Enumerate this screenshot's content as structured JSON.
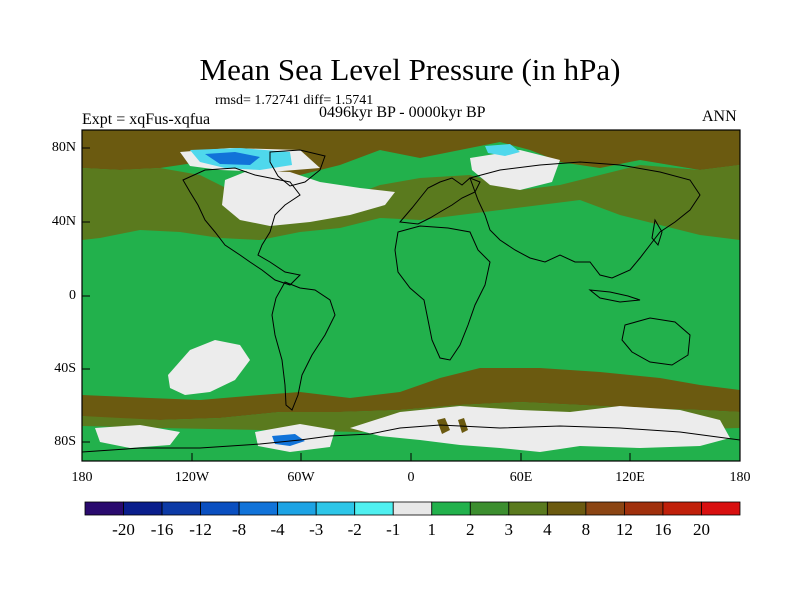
{
  "title": "Mean Sea Level Pressure (in hPa)",
  "stats_text": "rmsd= 1.72741 diff= 1.5741",
  "experiment_label": "Expt = xqFus-xqfua",
  "period_label": "0496kyr BP - 0000kyr BP",
  "season_label": "ANN",
  "y_ticks": [
    "80N",
    "40N",
    "0",
    "40S",
    "80S"
  ],
  "x_ticks": [
    "180",
    "120W",
    "60W",
    "0",
    "60E",
    "120E",
    "180"
  ],
  "colorbar": {
    "colors": [
      "#2a0a6e",
      "#0a1e8c",
      "#0c3aa6",
      "#0a4fc0",
      "#1173d9",
      "#1da3e4",
      "#2dc6e8",
      "#4ff0f0",
      "#e8e8e8",
      "#22b14c",
      "#3c8e2f",
      "#5a7a1e",
      "#6b5a10",
      "#8b4513",
      "#a0300c",
      "#c0200a",
      "#d81010"
    ],
    "labels": [
      "-20",
      "-16",
      "-12",
      "-8",
      "-4",
      "-3",
      "-2",
      "-1",
      "1",
      "2",
      "3",
      "4",
      "8",
      "12",
      "16",
      "20"
    ]
  },
  "field_colors": {
    "ocean_base": "#22b14c",
    "olive": "#5a7a1e",
    "brown": "#6b5a10",
    "white": "#ececec",
    "light_blue": "#4fd8ec",
    "blue": "#1173d9",
    "dark_blue": "#0a4fc0"
  }
}
